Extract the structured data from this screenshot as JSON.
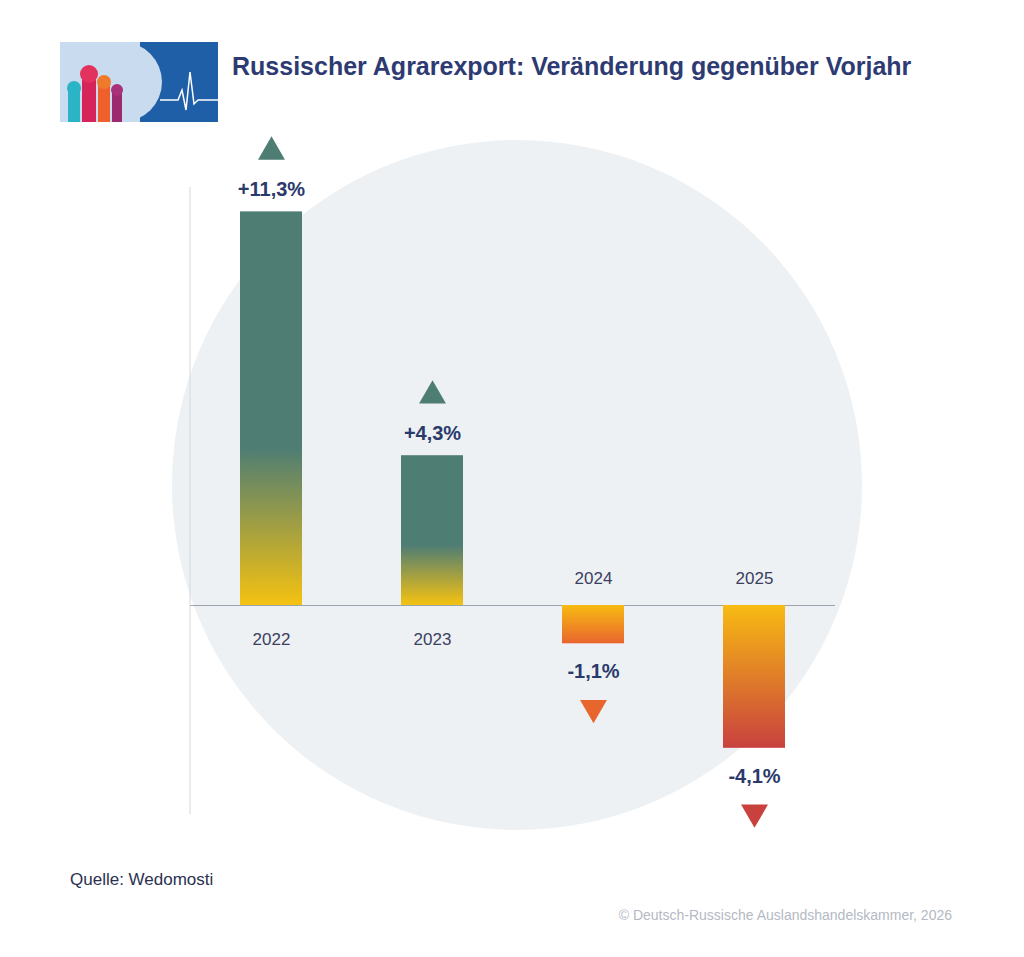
{
  "chart_data": {
    "type": "bar",
    "title": "Russischer Agrarexport: Veränderung gegenüber Vorjahr",
    "categories": [
      "2022",
      "2023",
      "2024",
      "2025"
    ],
    "values": [
      11.3,
      4.3,
      -1.1,
      -4.1
    ],
    "value_labels": [
      "+11,3%",
      "+4,3%",
      "-1,1%",
      "-4,1%"
    ],
    "colors": [
      "#4e7d74",
      "#4e7d74",
      "#e8652e",
      "#c8413f"
    ],
    "ylim": [
      -6,
      12
    ],
    "data_labels": true,
    "tick_labels": "x",
    "grid": false,
    "source": "Quelle: Wedomosti",
    "credit": "© Deutsch-Russische Auslandshandelskammer, 2026"
  }
}
